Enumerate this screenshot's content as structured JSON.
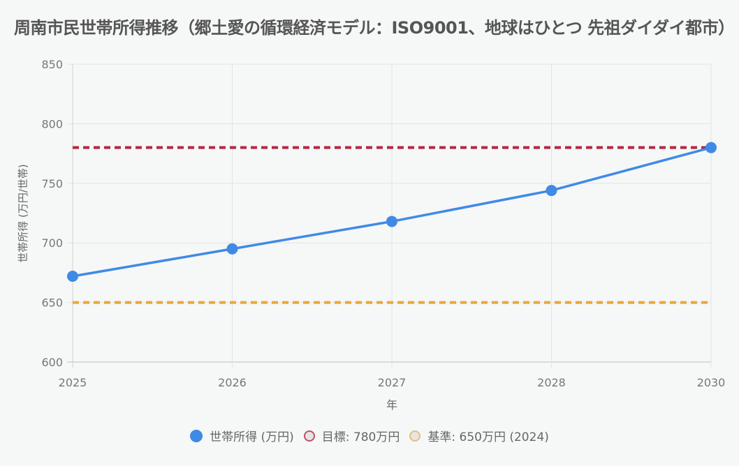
{
  "chart_data": {
    "type": "line",
    "title": "周南市民世帯所得推移（郷土愛の循環経済モデル：ISO9001、地球はひとつ 先祖ダイダイ都市）",
    "xlabel": "年",
    "ylabel": "世帯所得 (万円/世帯)",
    "categories": [
      "2025",
      "2026",
      "2027",
      "2028",
      "2030"
    ],
    "ylim": [
      600,
      850
    ],
    "yticks": [
      "600",
      "650",
      "700",
      "750",
      "800",
      "850"
    ],
    "grid": true,
    "legend_position": "bottom",
    "series": [
      {
        "name": "世帯所得 (万円)",
        "values": [
          672,
          695,
          718,
          744,
          780
        ],
        "color": "#3f8ae6",
        "style": "solid"
      },
      {
        "name": "目標: 780万円",
        "values": [
          780,
          780,
          780,
          780,
          780
        ],
        "color": "#b5273f",
        "style": "dashed"
      },
      {
        "name": "基準: 650万円 (2024)",
        "values": [
          650,
          650,
          650,
          650,
          650
        ],
        "color": "#eaa836",
        "style": "dashed"
      }
    ]
  },
  "legend": {
    "items": [
      {
        "label": "世帯所得 (万円)",
        "fill": "#3f8ae6",
        "border": "#3f8ae6"
      },
      {
        "label": "目標: 780万円",
        "fill": "#e5e5e5",
        "border": "#c0506a"
      },
      {
        "label": "基準: 650万円 (2024)",
        "fill": "#e5e5e5",
        "border": "#e0c27a"
      }
    ]
  }
}
